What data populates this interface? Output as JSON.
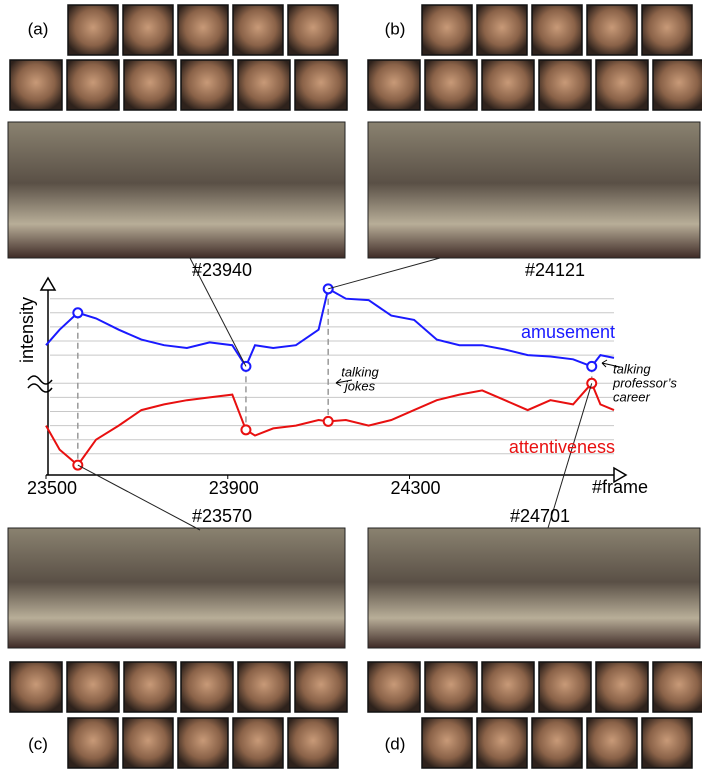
{
  "chart_data": {
    "type": "line",
    "xlabel": "#frame",
    "ylabel": "intensity",
    "x": [
      23500,
      23530,
      23570,
      23610,
      23660,
      23710,
      23760,
      23810,
      23860,
      23910,
      23940,
      23960,
      24000,
      24050,
      24100,
      24121,
      24160,
      24210,
      24260,
      24310,
      24360,
      24410,
      24460,
      24510,
      24560,
      24610,
      24660,
      24701,
      24720,
      24750
    ],
    "xlim": [
      23500,
      24750
    ],
    "xticks": [
      23500,
      23900,
      24300
    ],
    "ylim": [
      0,
      14
    ],
    "yticks": [
      2,
      3,
      4,
      5,
      6,
      7,
      9,
      10,
      11,
      12,
      13
    ],
    "grid": true,
    "series": [
      {
        "name": "amusement",
        "color": "#1a1aff",
        "values": [
          9.7,
          10.8,
          12.0,
          11.6,
          10.8,
          10.1,
          9.7,
          9.5,
          9.9,
          9.7,
          8.2,
          9.7,
          9.5,
          9.7,
          10.8,
          13.7,
          13.0,
          12.9,
          11.8,
          11.5,
          10.1,
          9.7,
          9.7,
          9.4,
          9.0,
          8.9,
          8.7,
          8.2,
          9.0,
          8.8
        ]
      },
      {
        "name": "attentiveness",
        "color": "#e81010",
        "values": [
          4.0,
          2.3,
          1.2,
          3.0,
          4.0,
          5.1,
          5.5,
          5.8,
          6.0,
          6.2,
          3.7,
          3.3,
          3.8,
          4.0,
          4.4,
          4.3,
          4.4,
          4.0,
          4.4,
          5.1,
          5.8,
          6.2,
          6.5,
          5.8,
          5.1,
          5.8,
          5.5,
          7.0,
          5.5,
          5.1
        ]
      }
    ],
    "highlights": [
      {
        "label": "#23570",
        "x": 23570
      },
      {
        "label": "#23940",
        "x": 23940
      },
      {
        "label": "#24121",
        "x": 24121
      },
      {
        "label": "#24701",
        "x": 24701
      }
    ],
    "annotations": [
      {
        "lines": [
          "talking",
          "jokes"
        ]
      },
      {
        "lines": [
          "talking",
          "professor’s",
          "career"
        ]
      }
    ]
  },
  "panels": [
    "(a)",
    "(b)",
    "(c)",
    "(d)"
  ]
}
